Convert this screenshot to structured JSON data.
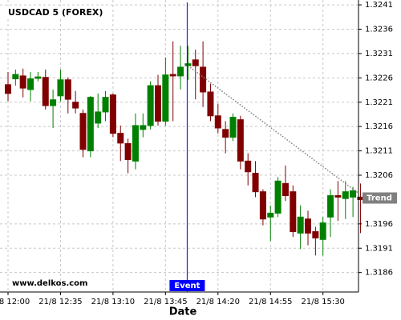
{
  "chart_data": {
    "type": "candlestick",
    "title": "USDCAD 5 (FOREX)",
    "watermark": "www.delkos.com",
    "x_label": "Date",
    "categories": [
      "21/8 12:00",
      null,
      null,
      null,
      null,
      null,
      null,
      "21/8 12:35",
      null,
      null,
      null,
      null,
      null,
      null,
      "21/8 13:10",
      null,
      null,
      null,
      null,
      null,
      null,
      "21/8 13:45",
      null,
      null,
      null,
      null,
      null,
      null,
      "21/8 14:20",
      null,
      null,
      null,
      null,
      null,
      null,
      "21/8 14:55",
      null,
      null,
      null,
      null,
      null,
      null,
      "21/8 15:30",
      null,
      null,
      null,
      null,
      null
    ],
    "ohlc": [
      [
        1.32246,
        1.32272,
        1.32212,
        1.32228
      ],
      [
        1.32258,
        1.32277,
        1.32244,
        1.32267
      ],
      [
        1.32264,
        1.32279,
        1.3222,
        1.32239
      ],
      [
        1.32236,
        1.32272,
        1.32212,
        1.32258
      ],
      [
        1.32259,
        1.32272,
        1.32253,
        1.32262
      ],
      [
        1.32261,
        1.32277,
        1.32195,
        1.32203
      ],
      [
        1.32203,
        1.32236,
        1.32157,
        1.32215
      ],
      [
        1.32223,
        1.32277,
        1.32212,
        1.32256
      ],
      [
        1.32256,
        1.32261,
        1.32187,
        1.32216
      ],
      [
        1.3221,
        1.32233,
        1.32187,
        1.32198
      ],
      [
        1.32187,
        1.32195,
        1.32097,
        1.32113
      ],
      [
        1.3211,
        1.32223,
        1.32097,
        1.3222
      ],
      [
        1.32167,
        1.32228,
        1.32157,
        1.3219
      ],
      [
        1.3219,
        1.32233,
        1.32171,
        1.3222
      ],
      [
        1.32225,
        1.32228,
        1.32138,
        1.32146
      ],
      [
        1.32146,
        1.32162,
        1.32089,
        1.32126
      ],
      [
        1.32125,
        1.32135,
        1.32064,
        1.32092
      ],
      [
        1.32089,
        1.32187,
        1.32072,
        1.32162
      ],
      [
        1.32154,
        1.32187,
        1.32138,
        1.32162
      ],
      [
        1.32162,
        1.32253,
        1.32154,
        1.32244
      ],
      [
        1.32244,
        1.32266,
        1.32162,
        1.32171
      ],
      [
        1.32171,
        1.32302,
        1.32162,
        1.32266
      ],
      [
        1.32267,
        1.32335,
        1.32171,
        1.32264
      ],
      [
        1.32264,
        1.32326,
        1.32236,
        1.32282
      ],
      [
        1.32285,
        1.32326,
        1.32256,
        1.32289
      ],
      [
        1.32297,
        1.32318,
        1.32216,
        1.32285
      ],
      [
        1.32282,
        1.32335,
        1.322,
        1.32231
      ],
      [
        1.32231,
        1.32248,
        1.32171,
        1.32182
      ],
      [
        1.32182,
        1.32207,
        1.32146,
        1.32157
      ],
      [
        1.32154,
        1.32171,
        1.32105,
        1.32138
      ],
      [
        1.32138,
        1.32187,
        1.3213,
        1.32179
      ],
      [
        1.32174,
        1.32182,
        1.32072,
        1.32089
      ],
      [
        1.32089,
        1.32105,
        1.32039,
        1.32067
      ],
      [
        1.32064,
        1.32089,
        1.32015,
        1.32026
      ],
      [
        1.32026,
        1.32031,
        1.31957,
        1.3197
      ],
      [
        1.31974,
        1.31998,
        1.31925,
        1.31982
      ],
      [
        1.31982,
        1.32056,
        1.31974,
        1.32048
      ],
      [
        1.32043,
        1.3208,
        1.32007,
        1.32018
      ],
      [
        1.32026,
        1.32039,
        1.31933,
        1.31944
      ],
      [
        1.31941,
        1.31998,
        1.31908,
        1.31974
      ],
      [
        1.3197,
        1.31987,
        1.31916,
        1.31941
      ],
      [
        1.31944,
        1.31954,
        1.31895,
        1.31931
      ],
      [
        1.31928,
        1.31974,
        1.31895,
        1.31962
      ],
      [
        1.31974,
        1.32031,
        1.31933,
        1.32018
      ],
      [
        1.32018,
        1.32048,
        1.31966,
        1.32015
      ],
      [
        1.32012,
        1.32048,
        1.3197,
        1.32026
      ],
      [
        1.32015,
        1.32036,
        1.31974,
        1.32028
      ],
      [
        1.32015,
        1.32043,
        1.31941,
        1.3201
      ]
    ],
    "up_color": "#008000",
    "down_color": "#800000",
    "ylim": [
      1.3182,
      1.3242
    ],
    "yticks": [
      1.3186,
      1.3191,
      1.3196,
      1.3206,
      1.3211,
      1.3216,
      1.3221,
      1.3226,
      1.3231,
      1.3236,
      1.3241
    ],
    "grid": true,
    "event": {
      "label": "Event",
      "x": 24,
      "color": "#0000ff"
    },
    "trend": {
      "label": "Trend",
      "x": [
        24,
        47
      ],
      "values": [
        1.32285,
        1.32023
      ],
      "color": "#808080"
    }
  }
}
